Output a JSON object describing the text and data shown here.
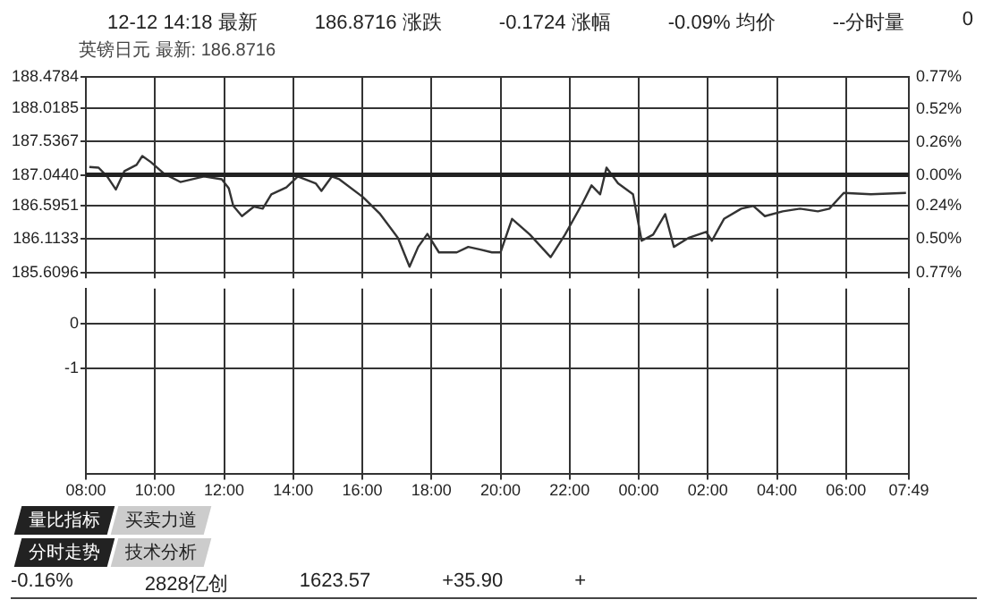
{
  "chart_data": [
    {
      "type": "line",
      "subtitle": "英镑日元 最新: 186.8716",
      "annotations": [
        "12-12 14:18 最新",
        "186.8716 涨跌",
        "-0.1724 涨幅",
        "-0.09% 均价",
        "--分时量",
        "0"
      ],
      "x": [
        "--12-12T08:06",
        "--12-12T08:22",
        "--12-12T08:37",
        "--12-12T08:52",
        "--12-12T09:07",
        "--12-12T09:28",
        "--12-12T09:38",
        "--12-12T09:53",
        "--12-12T10:16",
        "--12-12T10:44",
        "--12-12T11:25",
        "--12-12T11:56",
        "--12-12T12:08",
        "--12-12T12:16",
        "--12-12T12:31",
        "--12-12T12:52",
        "--12-12T13:07",
        "--12-12T13:22",
        "--12-12T13:48",
        "--12-12T14:08",
        "--12-12T14:39",
        "--12-12T14:49",
        "--12-12T15:07",
        "--12-12T15:20",
        "--12-12T16:01",
        "--12-12T16:31",
        "--12-12T17:02",
        "--12-12T17:22",
        "--12-12T17:37",
        "--12-12T17:53",
        "--12-12T18:13",
        "--12-12T18:44",
        "--12-12T19:04",
        "--12-12T19:25",
        "--12-12T19:45",
        "--12-12T20:00",
        "--12-12T20:20",
        "--12-12T20:51",
        "--12-12T21:27",
        "--12-12T21:52",
        "--12-12T22:23",
        "--12-12T22:38",
        "--12-12T22:53",
        "--12-12T23:04",
        "--12-12T23:24",
        "--12-12T23:50",
        "--12-13T00:05",
        "--12-13T00:25",
        "--12-13T00:46",
        "--12-13T01:01",
        "--12-13T01:26",
        "--12-13T01:57",
        "--12-13T02:07",
        "--12-13T02:28",
        "--12-13T02:58",
        "--12-13T03:19",
        "--12-13T03:39",
        "--12-13T04:10",
        "--12-13T04:40",
        "--12-13T05:11",
        "--12-13T05:31",
        "--12-13T05:56",
        "--12-13T06:43",
        "--12-13T07:44"
      ],
      "series": [
        {
          "color": "#333333",
          "values": [
            187.16,
            187.15,
            187.02,
            186.83,
            187.1,
            187.19,
            187.32,
            187.23,
            187.06,
            186.94,
            187.02,
            186.98,
            186.85,
            186.59,
            186.44,
            186.58,
            186.55,
            186.76,
            186.86,
            187.02,
            186.92,
            186.81,
            187.02,
            186.98,
            186.72,
            186.47,
            186.12,
            185.7,
            185.99,
            186.18,
            185.91,
            185.91,
            185.99,
            185.95,
            185.91,
            185.91,
            186.4,
            186.17,
            185.84,
            186.17,
            186.64,
            186.89,
            186.76,
            187.15,
            186.92,
            186.76,
            186.08,
            186.17,
            186.47,
            185.99,
            186.12,
            186.21,
            186.08,
            186.4,
            186.55,
            186.59,
            186.44,
            186.51,
            186.55,
            186.51,
            186.55,
            186.78,
            186.76,
            186.78
          ]
        }
      ],
      "xlim": [
        "--12-12T08:00",
        "--12-13T07:49"
      ],
      "xticks": [
        {
          "value": "--12-12T08:00",
          "label": null
        },
        {
          "value": "--12-12T10:00",
          "label": null
        },
        {
          "value": "--12-12T12:00",
          "label": null
        },
        {
          "value": "--12-12T14:00",
          "label": null
        },
        {
          "value": "--12-12T16:00",
          "label": null
        },
        {
          "value": "--12-12T18:00",
          "label": null
        },
        {
          "value": "--12-12T20:00",
          "label": null
        },
        {
          "value": "--12-12T22:00",
          "label": null
        },
        {
          "value": "--12-13T00:00",
          "label": null
        },
        {
          "value": "--12-13T02:00",
          "label": null
        },
        {
          "value": "--12-13T04:00",
          "label": null
        },
        {
          "value": "--12-13T06:00",
          "label": null
        },
        {
          "value": "--12-13T07:49",
          "label": null
        }
      ],
      "ylim": [
        185.6096,
        188.4784
      ],
      "yticks": [
        185.6096,
        186.1133,
        186.5951,
        {
          "value": 187.044,
          "label": "187.0440"
        },
        187.5367,
        188.0185,
        188.4784
      ],
      "y2lim": [
        -0.77,
        0.77
      ],
      "y2ticks": [
        {
          "value": 0.77,
          "label": "0.77%"
        },
        {
          "value": 0.52,
          "label": "0.52%"
        },
        {
          "value": 0.26,
          "label": "0.26%"
        },
        {
          "value": 0,
          "label": "0.00%"
        },
        {
          "value": -0.24,
          "label": "0.24%"
        },
        {
          "value": -0.5,
          "label": "0.50%"
        },
        {
          "value": -0.77,
          "label": "0.77%"
        }
      ],
      "ref_lines": [
        {
          "axis": "y",
          "value": 187.044
        }
      ],
      "grid": true,
      "tick_labels": "y",
      "marker": "none"
    },
    {
      "type": "line",
      "annotations": [
        "量比指标",
        "买卖力道",
        "分时走势",
        "技术分析",
        "-0.16%",
        "2828亿创",
        "1623.57",
        "+35.90",
        "+"
      ],
      "xlim": [
        "--12-12T08:00",
        "--12-13T07:49"
      ],
      "xticks": [
        {
          "value": "--12-12T08:00",
          "label": "08:00"
        },
        {
          "value": "--12-12T10:00",
          "label": "10:00"
        },
        {
          "value": "--12-12T12:00",
          "label": "12:00"
        },
        {
          "value": "--12-12T14:00",
          "label": "14:00"
        },
        {
          "value": "--12-12T16:00",
          "label": "16:00"
        },
        {
          "value": "--12-12T18:00",
          "label": "18:00"
        },
        {
          "value": "--12-12T20:00",
          "label": "20:00"
        },
        {
          "value": "--12-12T22:00",
          "label": "22:00"
        },
        {
          "value": "--12-13T00:00",
          "label": "00:00"
        },
        {
          "value": "--12-13T02:00",
          "label": "02:00"
        },
        {
          "value": "--12-13T04:00",
          "label": "04:00"
        },
        {
          "value": "--12-13T06:00",
          "label": "06:00"
        },
        {
          "value": "--12-13T07:49",
          "label": "07:49"
        }
      ],
      "ylim": [
        -3.4,
        0.8
      ],
      "yticks": [
        0,
        -1
      ],
      "grid": true
    }
  ]
}
